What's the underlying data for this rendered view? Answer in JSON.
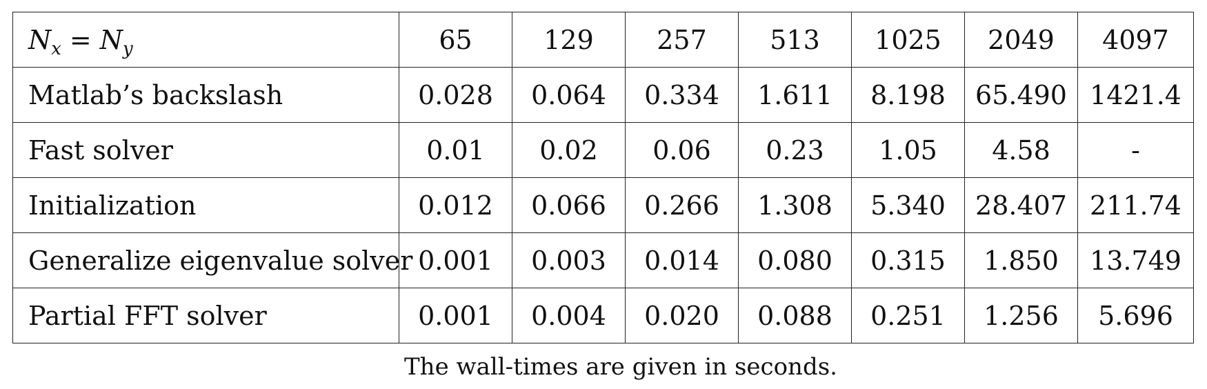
{
  "table": {
    "header": {
      "label": {
        "var1": "N",
        "sub1": "x",
        "eq": "=",
        "var2": "N",
        "sub2": "y"
      },
      "columns": [
        "65",
        "129",
        "257",
        "513",
        "1025",
        "2049",
        "4097"
      ]
    },
    "rows": [
      {
        "label": "Matlab’s backslash",
        "values": [
          "0.028",
          "0.064",
          "0.334",
          "1.611",
          "8.198",
          "65.490",
          "1421.4"
        ]
      },
      {
        "label": "Fast solver",
        "values": [
          "0.01",
          "0.02",
          "0.06",
          "0.23",
          "1.05",
          "4.58",
          "-"
        ]
      },
      {
        "label": "Initialization",
        "values": [
          "0.012",
          "0.066",
          "0.266",
          "1.308",
          "5.340",
          "28.407",
          "211.74"
        ]
      },
      {
        "label": "Generalize eigenvalue solver",
        "values": [
          "0.001",
          "0.003",
          "0.014",
          "0.080",
          "0.315",
          "1.850",
          "13.749"
        ]
      },
      {
        "label": "Partial FFT solver",
        "values": [
          "0.001",
          "0.004",
          "0.020",
          "0.088",
          "0.251",
          "1.256",
          "5.696"
        ]
      }
    ]
  },
  "caption": "The wall-times are given in seconds."
}
